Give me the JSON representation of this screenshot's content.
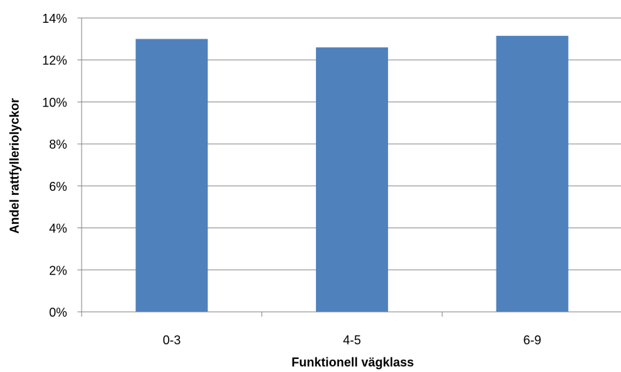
{
  "chart_data": {
    "type": "bar",
    "categories": [
      "0-3",
      "4-5",
      "6-9"
    ],
    "values": [
      13.0,
      12.6,
      13.15
    ],
    "xlabel": "Funktionell vägklass",
    "ylabel": "Andel rattfylleriolyckor",
    "ylim": [
      0,
      14
    ],
    "yticks": [
      0,
      2,
      4,
      6,
      8,
      10,
      12,
      14
    ],
    "ytick_labels": [
      "0%",
      "2%",
      "4%",
      "6%",
      "8%",
      "10%",
      "12%",
      "14%"
    ],
    "grid": "horizontal",
    "legend": "none",
    "colors": {
      "bar": "#4F81BD",
      "grid": "#868686",
      "axis": "#868686"
    }
  }
}
